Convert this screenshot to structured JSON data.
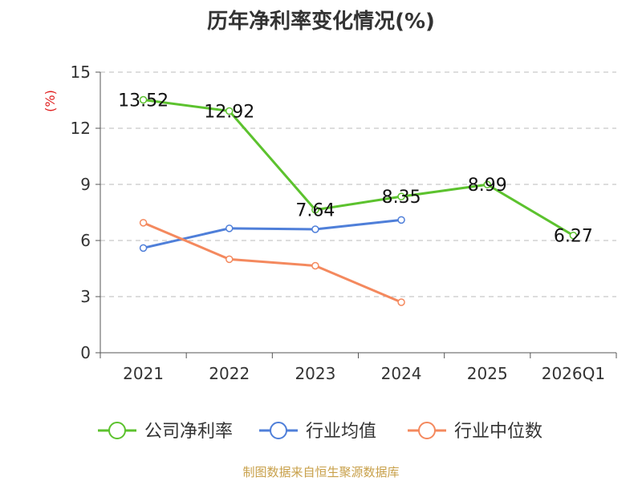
{
  "chart_data": {
    "type": "line",
    "title": "历年净利率变化情况(%)",
    "ylabel": "(%)",
    "xlabel": "",
    "categories": [
      "2021",
      "2022",
      "2023",
      "2024",
      "2025",
      "2026Q1"
    ],
    "ylim": [
      0,
      15
    ],
    "yticks": [
      0,
      3,
      6,
      9,
      12,
      15
    ],
    "grid": true,
    "legend_position": "bottom",
    "series": [
      {
        "name": "公司净利率",
        "color": "#5cc22e",
        "values": [
          13.52,
          12.92,
          7.64,
          8.35,
          8.99,
          6.27
        ],
        "labels": [
          "13.52",
          "12.92",
          "7.64",
          "8.35",
          "8.99",
          "6.27"
        ]
      },
      {
        "name": "行业均值",
        "color": "#4f7fd9",
        "values": [
          5.6,
          6.65,
          6.6,
          7.1,
          null,
          null
        ]
      },
      {
        "name": "行业中位数",
        "color": "#f4895e",
        "values": [
          6.95,
          5.0,
          4.65,
          2.7,
          null,
          null
        ]
      }
    ]
  },
  "source": "制图数据来自恒生聚源数据库"
}
